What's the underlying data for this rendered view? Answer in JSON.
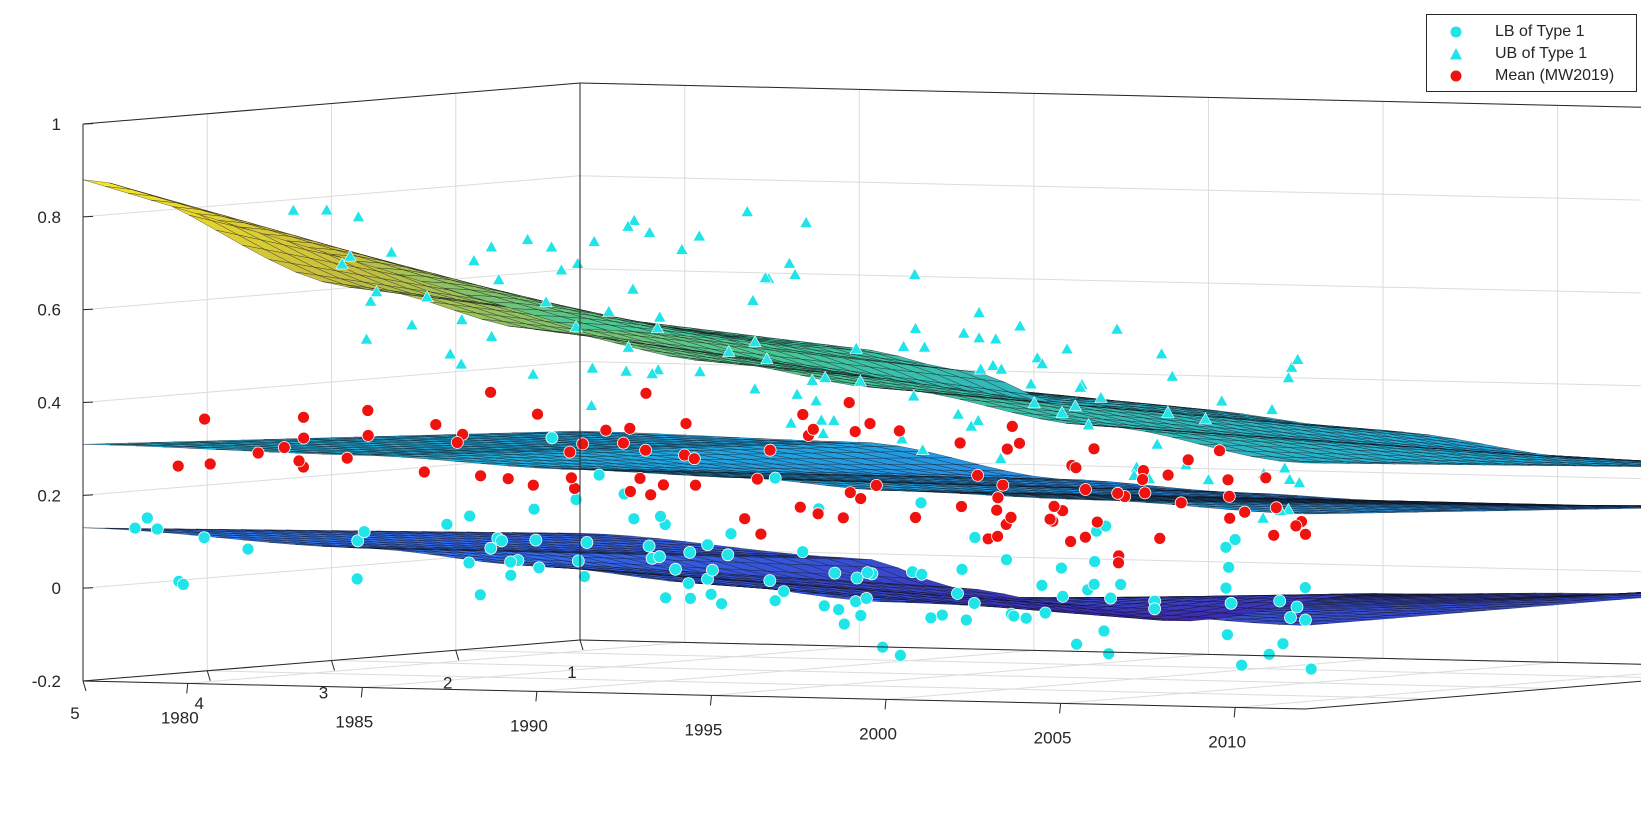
{
  "chart_data": {
    "type": "surface3d",
    "axes": {
      "z": {
        "lim": [
          -0.2,
          1.0
        ],
        "ticks": [
          "-0.2",
          "0",
          "0.2",
          "0.4",
          "0.6",
          "0.8",
          "1"
        ]
      },
      "y": {
        "lim": [
          1,
          5
        ],
        "ticks": [
          "1",
          "2",
          "3",
          "4",
          "5"
        ]
      },
      "x": {
        "lim": [
          1977,
          2012
        ],
        "ticks": [
          "1980",
          "1985",
          "1990",
          "1995",
          "2000",
          "2005",
          "2010"
        ]
      },
      "grid": true
    },
    "legend": {
      "position": "top-right",
      "entries": [
        {
          "label": "LB of Type 1",
          "marker": "circle",
          "color": "#1fe4e8"
        },
        {
          "label": "UB of Type 1",
          "marker": "triangle",
          "color": "#1fe4e8"
        },
        {
          "label": "Mean (MW2019)",
          "marker": "circle",
          "color": "#f0120f"
        }
      ]
    },
    "surfaces": [
      {
        "name_visible": false,
        "role": "upper",
        "edge_at_y1": [
          [
            1977,
            0.47
          ],
          [
            1985,
            0.44
          ],
          [
            1988,
            0.4
          ],
          [
            1991,
            0.33
          ],
          [
            1994,
            0.33
          ],
          [
            2000,
            0.29
          ],
          [
            2006,
            0.24
          ],
          [
            2012,
            0.23
          ]
        ],
        "edge_at_y5": [
          [
            1977,
            0.88
          ],
          [
            1985,
            0.66
          ],
          [
            1990,
            0.58
          ],
          [
            1995,
            0.52
          ],
          [
            2000,
            0.47
          ],
          [
            2006,
            0.4
          ],
          [
            2012,
            0.33
          ]
        ]
      },
      {
        "name_visible": false,
        "role": "middle",
        "edge_at_y1": [
          [
            1977,
            0.25
          ],
          [
            1985,
            0.24
          ],
          [
            1991,
            0.17
          ],
          [
            1996,
            0.15
          ],
          [
            2000,
            0.14
          ],
          [
            2006,
            0.14
          ],
          [
            2012,
            0.15
          ]
        ],
        "edge_at_y5": [
          [
            1977,
            0.31
          ],
          [
            1985,
            0.3
          ],
          [
            1991,
            0.28
          ],
          [
            1996,
            0.27
          ],
          [
            2000,
            0.25
          ],
          [
            2006,
            0.24
          ],
          [
            2012,
            0.22
          ]
        ]
      },
      {
        "name_visible": false,
        "role": "lower",
        "edge_at_y1": [
          [
            1977,
            0.03
          ],
          [
            1985,
            -0.01
          ],
          [
            1988,
            -0.07
          ],
          [
            1991,
            -0.1
          ],
          [
            1994,
            -0.13
          ],
          [
            2000,
            -0.06
          ],
          [
            2006,
            -0.05
          ],
          [
            2012,
            -0.02
          ]
        ],
        "edge_at_y5": [
          [
            1977,
            0.13
          ],
          [
            1985,
            0.1
          ],
          [
            1990,
            0.07
          ],
          [
            1995,
            0.04
          ],
          [
            2000,
            0.01
          ],
          [
            2006,
            0.0
          ],
          [
            2012,
            -0.02
          ]
        ]
      }
    ],
    "series": [
      {
        "name": "LB of Type 1",
        "marker": "circle",
        "color": "#1fe4e8",
        "center": [
          [
            1977,
            0.13
          ],
          [
            1980,
            0.09
          ],
          [
            1985,
            0.05
          ],
          [
            1990,
            0.02
          ],
          [
            1995,
            0.0
          ],
          [
            2000,
            -0.02
          ],
          [
            2005,
            -0.04
          ],
          [
            2010,
            -0.05
          ],
          [
            2012,
            -0.05
          ]
        ],
        "spread": 0.09,
        "count": 150
      },
      {
        "name": "UB of Type 1",
        "marker": "triangle",
        "color": "#1fe4e8",
        "center": [
          [
            1977,
            0.78
          ],
          [
            1980,
            0.68
          ],
          [
            1985,
            0.56
          ],
          [
            1990,
            0.48
          ],
          [
            1995,
            0.43
          ],
          [
            2000,
            0.38
          ],
          [
            2005,
            0.33
          ],
          [
            2010,
            0.24
          ],
          [
            2012,
            0.2
          ]
        ],
        "spread": 0.09,
        "count": 155
      },
      {
        "name": "Mean (MW2019)",
        "marker": "circle",
        "color": "#f0120f",
        "center": [
          [
            1977,
            0.31
          ],
          [
            1980,
            0.29
          ],
          [
            1985,
            0.25
          ],
          [
            1990,
            0.22
          ],
          [
            1995,
            0.19
          ],
          [
            2000,
            0.18
          ],
          [
            2005,
            0.16
          ],
          [
            2010,
            0.15
          ],
          [
            2012,
            0.15
          ]
        ],
        "spread": 0.06,
        "count": 125
      }
    ]
  }
}
